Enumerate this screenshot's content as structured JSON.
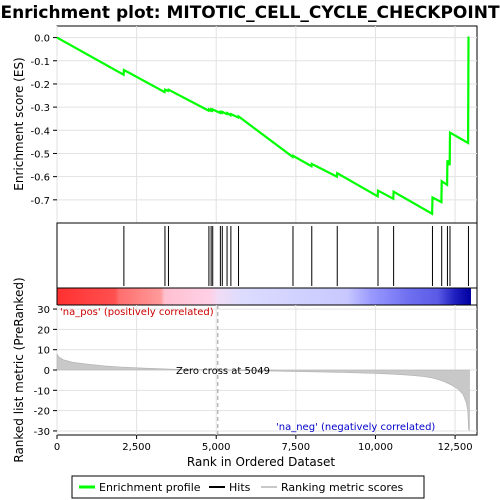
{
  "chart_data": {
    "type": "line",
    "title": "Enrichment plot: MITOTIC_CELL_CYCLE_CHECKPOINT",
    "top_panel": {
      "ylabel": "Enrichment score (ES)",
      "ylim": [
        -0.8,
        0.05
      ],
      "yticks": [
        "0.0",
        "-0.1",
        "-0.2",
        "-0.3",
        "-0.4",
        "-0.5",
        "-0.6",
        "-0.7"
      ],
      "series": [
        {
          "name": "Enrichment profile",
          "x": [
            0,
            2090,
            2100,
            3380,
            3390,
            3490,
            3500,
            4760,
            4770,
            4830,
            4840,
            4880,
            4890,
            5120,
            5130,
            5180,
            5190,
            5330,
            5340,
            5450,
            5460,
            5690,
            5700,
            7400,
            7410,
            7990,
            8000,
            8790,
            8800,
            10070,
            10080,
            10560,
            10570,
            11780,
            11790,
            12070,
            12080,
            12250,
            12260,
            12330,
            12340,
            12910,
            12920,
            12950
          ],
          "y": [
            0.0,
            -0.16,
            -0.14,
            -0.235,
            -0.225,
            -0.23,
            -0.225,
            -0.315,
            -0.31,
            -0.315,
            -0.31,
            -0.315,
            -0.31,
            -0.325,
            -0.32,
            -0.325,
            -0.32,
            -0.33,
            -0.325,
            -0.335,
            -0.33,
            -0.345,
            -0.34,
            -0.515,
            -0.51,
            -0.555,
            -0.545,
            -0.6,
            -0.585,
            -0.685,
            -0.66,
            -0.695,
            -0.665,
            -0.76,
            -0.69,
            -0.71,
            -0.62,
            -0.635,
            -0.53,
            -0.55,
            -0.41,
            -0.455,
            0.0,
            0.0
          ],
          "color": "#00ff00"
        }
      ]
    },
    "hits": [
      2100,
      3390,
      3500,
      4770,
      4840,
      4890,
      5130,
      5190,
      5340,
      5460,
      5700,
      7410,
      8000,
      8800,
      10080,
      10570,
      11790,
      12080,
      12260,
      12340,
      12920
    ],
    "middle_panel": {
      "ylabel": "Ranked list metric (PreRanked)",
      "ylim": [
        -32,
        32
      ],
      "yticks": [
        "30",
        "20",
        "10",
        "0",
        "-10",
        "-20",
        "-30"
      ],
      "xlabel": "Rank in Ordered Dataset",
      "xlim": [
        0,
        13000
      ],
      "xticks": [
        "0",
        "2,500",
        "5,000",
        "7,500",
        "10,000",
        "12,500"
      ],
      "zero_cross": 5049,
      "zero_cross_label": "Zero cross at 5049",
      "pos_label": "'na_pos' (positively correlated)",
      "neg_label": "'na_neg' (negatively correlated)",
      "pos_color": "#e00000",
      "neg_color": "#0000cc",
      "metric_profile": {
        "x": [
          0,
          50,
          200,
          500,
          1000,
          1500,
          2000,
          2500,
          3000,
          3500,
          4000,
          4500,
          5049,
          6000,
          7000,
          8000,
          9000,
          10000,
          10500,
          11000,
          11500,
          11800,
          12000,
          12200,
          12400,
          12600,
          12750,
          12850,
          12900,
          12920,
          12950
        ],
        "y": [
          8,
          6.5,
          5,
          3.8,
          2.8,
          2.0,
          1.5,
          1.1,
          0.8,
          0.5,
          0.3,
          0.15,
          0,
          -0.3,
          -0.6,
          -0.9,
          -1.2,
          -1.7,
          -2.0,
          -2.5,
          -3.2,
          -4.0,
          -4.8,
          -6.0,
          -7.5,
          -9.5,
          -12,
          -16,
          -20,
          -29,
          -30
        ]
      }
    },
    "legend": [
      "Enrichment profile",
      "Hits",
      "Ranking metric scores"
    ]
  }
}
